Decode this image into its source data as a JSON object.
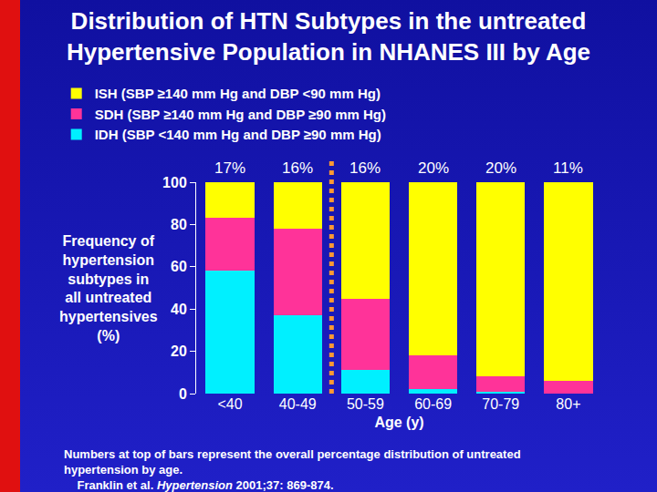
{
  "chart_data": {
    "type": "bar",
    "stacked": true,
    "title": [
      "Distribution of HTN Subtypes in the untreated",
      "Hypertensive Population in NHANES III by Age"
    ],
    "categories": [
      "<40",
      "40-49",
      "50-59",
      "60-69",
      "70-79",
      "80+"
    ],
    "series": [
      {
        "name": "IDH (SBP <140 mm Hg and DBP ≥90 mm Hg)",
        "color": "#00f0ff",
        "values": [
          58,
          37,
          11,
          2,
          1,
          0
        ]
      },
      {
        "name": "SDH (SBP ≥140 mm Hg and DBP ≥90 mm Hg)",
        "color": "#ff3399",
        "values": [
          25,
          41,
          34,
          16,
          7,
          6
        ]
      },
      {
        "name": "ISH (SBP ≥140 mm Hg and DBP <90 mm Hg)",
        "color": "#ffff00",
        "values": [
          17,
          22,
          55,
          82,
          92,
          94
        ]
      }
    ],
    "x_label": "Age (y)",
    "y_label": [
      "Frequency of",
      "hypertension",
      "subtypes in",
      "all untreated",
      "hypertensives",
      "(%)"
    ],
    "ylim": [
      0,
      100
    ],
    "yticks": [
      0,
      20,
      40,
      60,
      80,
      100
    ],
    "grid": false,
    "legend": "top-left",
    "overall_percent": {
      "values": [
        17,
        16,
        16,
        20,
        20,
        11
      ],
      "value_labels": [
        "17%",
        "16%",
        "16%",
        "20%",
        "20%",
        "11%"
      ]
    },
    "footnote": [
      "Numbers at top of bars represent the overall percentage distribution of untreated",
      "hypertension by age."
    ],
    "source": {
      "authors": "Franklin et al.",
      "journal": "Hypertension",
      "details": "2001;37: 869-874."
    }
  }
}
